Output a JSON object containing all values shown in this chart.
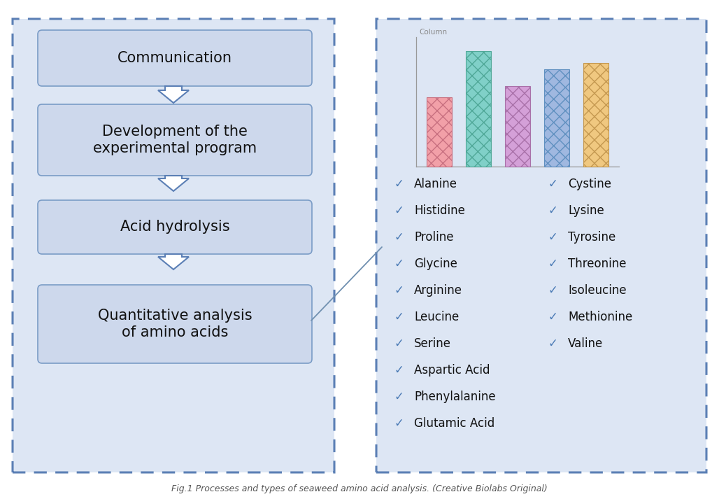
{
  "bg_color": "#ffffff",
  "left_panel": {
    "box_fill": "#cdd8ec",
    "box_edge": "#7a9cc6",
    "outer_fill": "#dde6f4",
    "outer_edge": "#5b7fb5",
    "steps": [
      "Communication",
      "Development of the\nexperimental program",
      "Acid hydrolysis",
      "Quantitative analysis\nof amino acids"
    ],
    "step_font_size": 15
  },
  "right_panel": {
    "outer_fill": "#dde6f4",
    "outer_edge": "#5b7fb5",
    "bar_label": "Column",
    "bar_values": [
      3.0,
      5.0,
      3.5,
      4.2,
      4.5
    ],
    "bar_colors": [
      "#f2a0a8",
      "#80d0c8",
      "#d4a0d8",
      "#a0b8e0",
      "#f0c880"
    ],
    "bar_edge_colors": [
      "#c87080",
      "#50a898",
      "#a870a8",
      "#6090c0",
      "#c49850"
    ],
    "left_col": [
      "Alanine",
      "Histidine",
      "Proline",
      "Glycine",
      "Arginine",
      "Leucine",
      "Serine",
      "Aspartic Acid",
      "Phenylalanine",
      "Glutamic Acid"
    ],
    "right_col": [
      "Cystine",
      "Lysine",
      "Tyrosine",
      "Threonine",
      "Isoleucine",
      "Methionine",
      "Valine"
    ],
    "check_color": "#4a7ab5",
    "text_color": "#111111",
    "list_font_size": 12
  },
  "arrow_color": "#5b7fb5",
  "arrow_fill": "#ffffff",
  "connector_color": "#7090b0",
  "title": "Fig.1 Processes and types of seaweed amino acid analysis. (Creative Biolabs Original)"
}
